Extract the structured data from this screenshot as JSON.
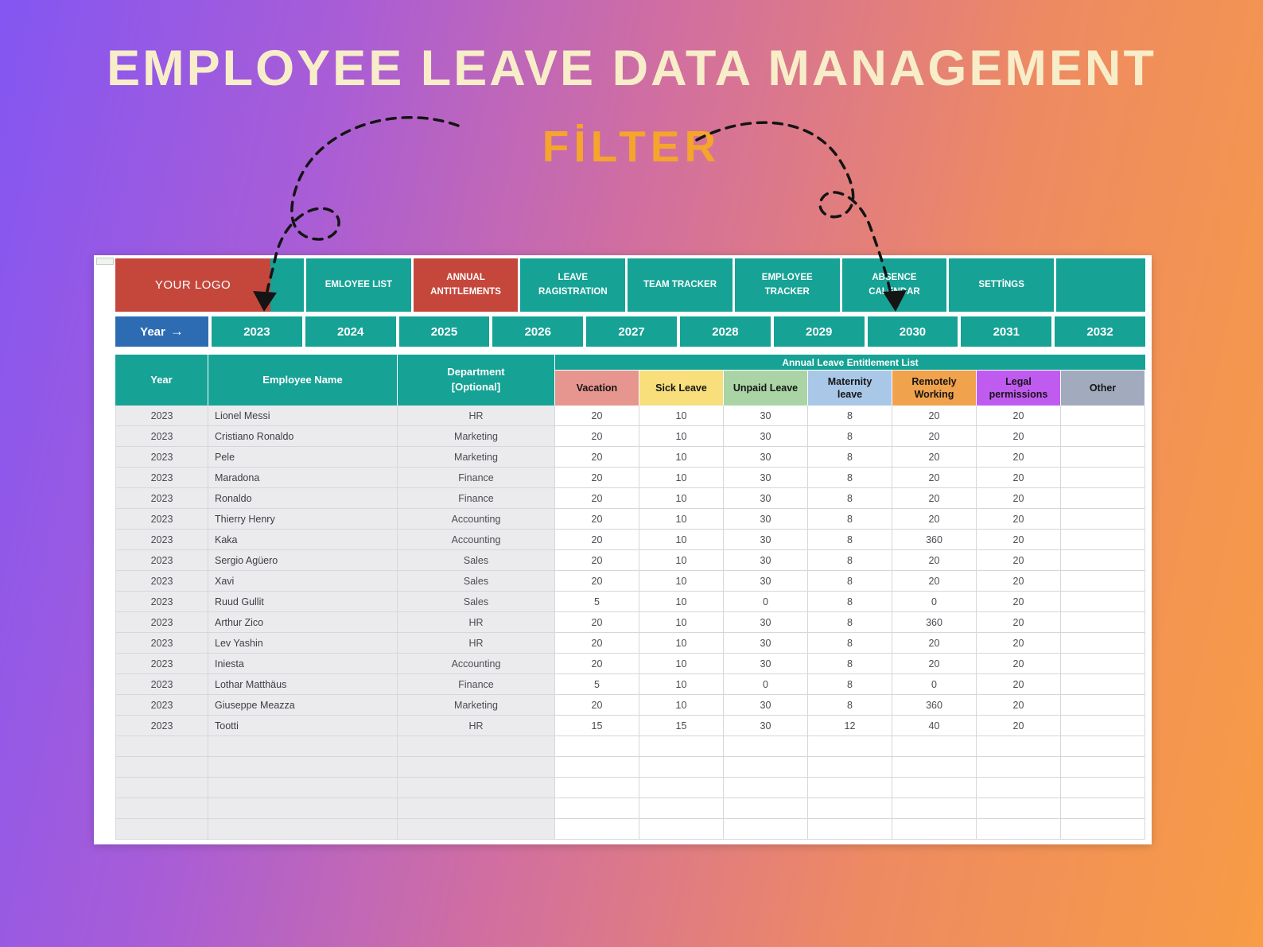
{
  "title": "EMPLOYEE LEAVE DATA MANAGEMENT",
  "subtitle": "FİLTER",
  "colors": {
    "teal": "#16a295",
    "red": "#c5473c",
    "blue": "#2d6cb3",
    "title_text": "#f8edc9",
    "subtitle_text": "#f5a42c"
  },
  "nav": {
    "logo": "YOUR LOGO",
    "tabs": [
      {
        "label": "EMLOYEE LIST",
        "active": false
      },
      {
        "label": "ANNUAL ANTITLEMENTS",
        "active": true
      },
      {
        "label": "LEAVE RAGISTRATION",
        "active": false
      },
      {
        "label": "TEAM TRACKER",
        "active": false
      },
      {
        "label": "EMPLOYEE TRACKER",
        "active": false
      },
      {
        "label": "ABSENCE CALENDAR",
        "active": false
      },
      {
        "label": "SETTİNGS",
        "active": false
      }
    ]
  },
  "year_filter": {
    "label": "Year",
    "arrow": "→",
    "years": [
      "2023",
      "2024",
      "2025",
      "2026",
      "2027",
      "2028",
      "2029",
      "2030",
      "2031",
      "2032"
    ]
  },
  "table": {
    "group_header": "Annual Leave Entitlement List",
    "static_columns": [
      {
        "key": "year",
        "label": "Year"
      },
      {
        "key": "name",
        "label": "Employee Name"
      },
      {
        "key": "department",
        "label": "Department\n[Optional]"
      }
    ],
    "leave_columns": [
      {
        "key": "vacation",
        "label": "Vacation",
        "color": "#e6958f"
      },
      {
        "key": "sick",
        "label": "Sick Leave",
        "color": "#f8df7c"
      },
      {
        "key": "unpaid",
        "label": "Unpaid Leave",
        "color": "#aad4a5"
      },
      {
        "key": "maternity",
        "label": "Maternity\nleave",
        "color": "#a9c7e7"
      },
      {
        "key": "remote",
        "label": "Remotely\nWorking",
        "color": "#f1a24c"
      },
      {
        "key": "legal",
        "label": "Legal\npermissions",
        "color": "#c05bf0"
      },
      {
        "key": "other",
        "label": "Other",
        "color": "#a2abbd"
      }
    ],
    "rows": [
      {
        "year": "2023",
        "name": "Lionel Messi",
        "department": "HR",
        "vacation": "20",
        "sick": "10",
        "unpaid": "30",
        "maternity": "8",
        "remote": "20",
        "legal": "20",
        "other": ""
      },
      {
        "year": "2023",
        "name": "Cristiano Ronaldo",
        "department": "Marketing",
        "vacation": "20",
        "sick": "10",
        "unpaid": "30",
        "maternity": "8",
        "remote": "20",
        "legal": "20",
        "other": ""
      },
      {
        "year": "2023",
        "name": "Pele",
        "department": "Marketing",
        "vacation": "20",
        "sick": "10",
        "unpaid": "30",
        "maternity": "8",
        "remote": "20",
        "legal": "20",
        "other": ""
      },
      {
        "year": "2023",
        "name": "Maradona",
        "department": "Finance",
        "vacation": "20",
        "sick": "10",
        "unpaid": "30",
        "maternity": "8",
        "remote": "20",
        "legal": "20",
        "other": ""
      },
      {
        "year": "2023",
        "name": "Ronaldo",
        "department": "Finance",
        "vacation": "20",
        "sick": "10",
        "unpaid": "30",
        "maternity": "8",
        "remote": "20",
        "legal": "20",
        "other": ""
      },
      {
        "year": "2023",
        "name": "Thierry Henry",
        "department": "Accounting",
        "vacation": "20",
        "sick": "10",
        "unpaid": "30",
        "maternity": "8",
        "remote": "20",
        "legal": "20",
        "other": ""
      },
      {
        "year": "2023",
        "name": "Kaka",
        "department": "Accounting",
        "vacation": "20",
        "sick": "10",
        "unpaid": "30",
        "maternity": "8",
        "remote": "360",
        "legal": "20",
        "other": ""
      },
      {
        "year": "2023",
        "name": "Sergio Agüero",
        "department": "Sales",
        "vacation": "20",
        "sick": "10",
        "unpaid": "30",
        "maternity": "8",
        "remote": "20",
        "legal": "20",
        "other": ""
      },
      {
        "year": "2023",
        "name": "Xavi",
        "department": "Sales",
        "vacation": "20",
        "sick": "10",
        "unpaid": "30",
        "maternity": "8",
        "remote": "20",
        "legal": "20",
        "other": ""
      },
      {
        "year": "2023",
        "name": "Ruud Gullit",
        "department": "Sales",
        "vacation": "5",
        "sick": "10",
        "unpaid": "0",
        "maternity": "8",
        "remote": "0",
        "legal": "20",
        "other": ""
      },
      {
        "year": "2023",
        "name": "Arthur Zico",
        "department": "HR",
        "vacation": "20",
        "sick": "10",
        "unpaid": "30",
        "maternity": "8",
        "remote": "360",
        "legal": "20",
        "other": ""
      },
      {
        "year": "2023",
        "name": "Lev Yashin",
        "department": "HR",
        "vacation": "20",
        "sick": "10",
        "unpaid": "30",
        "maternity": "8",
        "remote": "20",
        "legal": "20",
        "other": ""
      },
      {
        "year": "2023",
        "name": "Iniesta",
        "department": "Accounting",
        "vacation": "20",
        "sick": "10",
        "unpaid": "30",
        "maternity": "8",
        "remote": "20",
        "legal": "20",
        "other": ""
      },
      {
        "year": "2023",
        "name": "Lothar Matthäus",
        "department": "Finance",
        "vacation": "5",
        "sick": "10",
        "unpaid": "0",
        "maternity": "8",
        "remote": "0",
        "legal": "20",
        "other": ""
      },
      {
        "year": "2023",
        "name": "Giuseppe Meazza",
        "department": "Marketing",
        "vacation": "20",
        "sick": "10",
        "unpaid": "30",
        "maternity": "8",
        "remote": "360",
        "legal": "20",
        "other": ""
      },
      {
        "year": "2023",
        "name": "Tootti",
        "department": "HR",
        "vacation": "15",
        "sick": "15",
        "unpaid": "30",
        "maternity": "12",
        "remote": "40",
        "legal": "20",
        "other": ""
      }
    ],
    "empty_row_count": 5
  }
}
